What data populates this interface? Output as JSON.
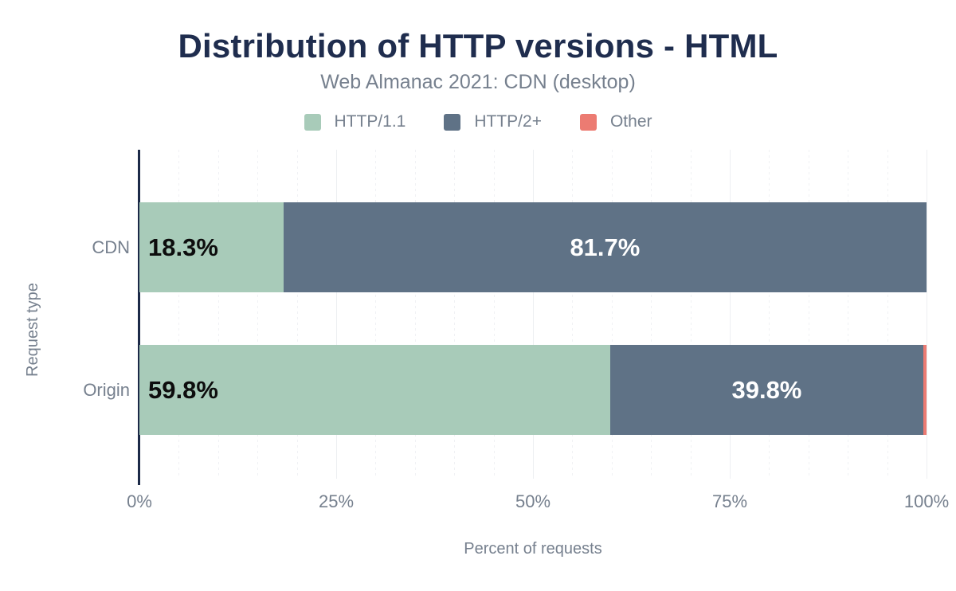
{
  "title": "Distribution of HTTP versions - HTML",
  "subtitle": "Web Almanac 2021: CDN (desktop)",
  "axes": {
    "x_title": "Percent of requests",
    "y_title": "Request type"
  },
  "colors": {
    "title_text": "#1f2d4e",
    "muted_text": "#76808e",
    "axis_line": "#1c2a48",
    "grid_minor": "#f0f1f4",
    "grid_major": "#edeff2",
    "bar_label_on_light": "#0d0d0d",
    "bar_label_on_dark": "#ffffff"
  },
  "chart_data": {
    "type": "bar",
    "orientation": "horizontal",
    "stacked": true,
    "title": "Distribution of HTTP versions - HTML",
    "subtitle": "Web Almanac 2021: CDN (desktop)",
    "xlabel": "Percent of requests",
    "ylabel": "Request type",
    "xlim": [
      0,
      100
    ],
    "grid": {
      "minor_step": 5,
      "major_step": 25
    },
    "legend_position": "top",
    "categories": [
      "CDN",
      "Origin"
    ],
    "series": [
      {
        "name": "HTTP/1.1",
        "color": "#a8cbb9",
        "values": [
          18.3,
          59.8
        ],
        "data_labels": [
          "18.3%",
          "59.8%"
        ],
        "label_style": "on-light",
        "label_align": "start"
      },
      {
        "name": "HTTP/2+",
        "color": "#5f7286",
        "values": [
          81.7,
          39.8
        ],
        "data_labels": [
          "81.7%",
          "39.8%"
        ],
        "label_style": "on-dark",
        "label_align": "center"
      },
      {
        "name": "Other",
        "color": "#ec7b72",
        "values": [
          0,
          0.4
        ],
        "data_labels": [
          "",
          ""
        ],
        "label_style": "on-dark",
        "label_align": "center"
      }
    ],
    "xticks": [
      {
        "value": 0,
        "label": "0%"
      },
      {
        "value": 25,
        "label": "25%"
      },
      {
        "value": 50,
        "label": "50%"
      },
      {
        "value": 75,
        "label": "75%"
      },
      {
        "value": 100,
        "label": "100%"
      }
    ]
  }
}
